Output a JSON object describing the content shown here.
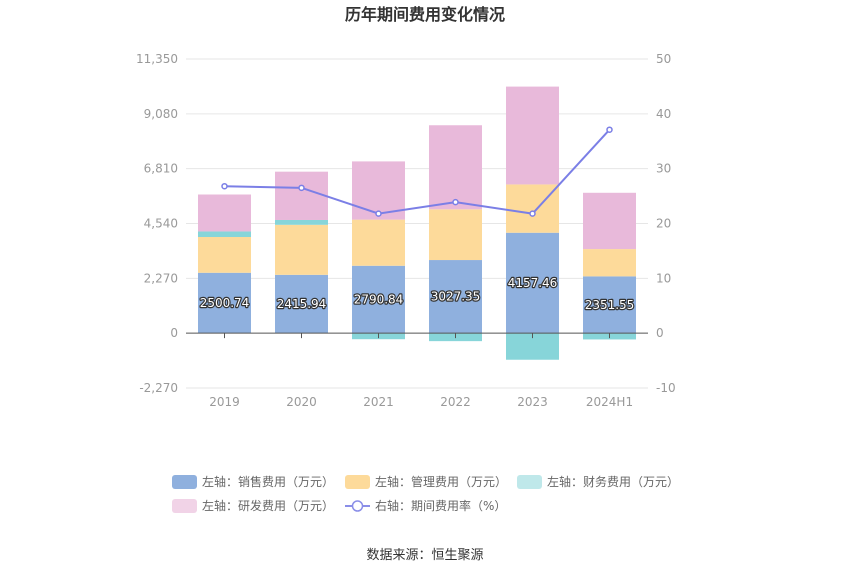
{
  "chart_data": {
    "type": "bar",
    "title": "历年期间费用变化情况",
    "categories": [
      "2019",
      "2020",
      "2021",
      "2022",
      "2023",
      "2024H1"
    ],
    "stacked": true,
    "left_axis": {
      "ylim": [
        -2270,
        11350
      ],
      "ticks": [
        "-2,270",
        "0",
        "2,270",
        "4,540",
        "6,810",
        "9,080",
        "11,350"
      ],
      "tick_values": [
        -2270,
        0,
        2270,
        4540,
        6810,
        9080,
        11350
      ]
    },
    "right_axis": {
      "ylim": [
        -10,
        50
      ],
      "ticks": [
        "-10",
        "0",
        "10",
        "20",
        "30",
        "40",
        "50"
      ],
      "tick_values": [
        -10,
        0,
        10,
        20,
        30,
        40,
        50
      ]
    },
    "series": [
      {
        "name": "左轴：销售费用（万元）",
        "type": "bar",
        "axis": "left",
        "color": "#8fb0de",
        "values": [
          2500.74,
          2415.94,
          2790.84,
          3027.35,
          4157.46,
          2351.55
        ],
        "labels_shown": true
      },
      {
        "name": "左轴：管理费用（万元）",
        "type": "bar",
        "axis": "left",
        "color": "#fdda9a",
        "values": [
          1480,
          2070,
          1910,
          2100,
          2000,
          1130
        ]
      },
      {
        "name": "左轴：财务费用（万元）",
        "type": "bar",
        "axis": "left",
        "color": "#87d5d9",
        "values": [
          230,
          200,
          -250,
          -330,
          -1100,
          -260
        ]
      },
      {
        "name": "左轴：研发费用（万元）",
        "type": "bar",
        "axis": "left",
        "color": "#e8b9da",
        "values": [
          1530,
          2000,
          2410,
          3480,
          4050,
          2330
        ]
      },
      {
        "name": "右轴：期间费用率（%）",
        "type": "line",
        "axis": "right",
        "color": "#7b7fe6",
        "values": [
          26.8,
          26.5,
          21.8,
          23.9,
          21.8,
          37.1
        ]
      }
    ],
    "legend": {
      "position": "bottom",
      "items": [
        {
          "label": "左轴：销售费用（万元）",
          "color": "#8fb0de",
          "kind": "bar"
        },
        {
          "label": "左轴：管理费用（万元）",
          "color": "#fdda9a",
          "kind": "bar"
        },
        {
          "label": "左轴：财务费用（万元）",
          "color": "#bfe8ea",
          "kind": "bar"
        },
        {
          "label": "左轴：研发费用（万元）",
          "color": "#f1d3e7",
          "kind": "bar"
        },
        {
          "label": "右轴：期间费用率（%）",
          "color": "#8a8ee8",
          "kind": "line"
        }
      ]
    },
    "grid": true
  },
  "footer": {
    "source": "数据来源：恒生聚源"
  }
}
